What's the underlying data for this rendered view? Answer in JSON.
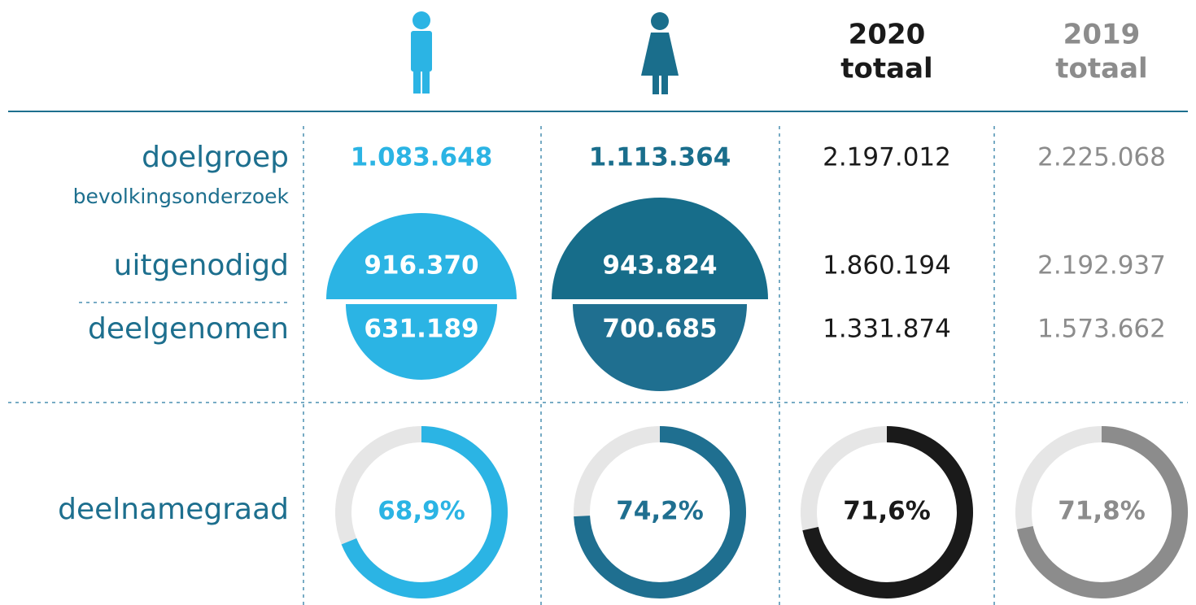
{
  "header": {
    "totals": [
      {
        "year": "2020",
        "label": "totaal"
      },
      {
        "year": "2019",
        "label": "totaal"
      }
    ]
  },
  "table": {
    "rows": [
      {
        "label": "doelgroep",
        "sublabel": "bevolkingsonderzoek",
        "values": [
          "1.083.648",
          "1.113.364",
          "2.197.012",
          "2.225.068"
        ]
      },
      {
        "label": "uitgenodigd",
        "values": [
          "916.370",
          "943.824",
          "1.860.194",
          "2.192.937"
        ]
      },
      {
        "label": "deelgenomen",
        "values": [
          "631.189",
          "700.685",
          "1.331.874",
          "1.573.662"
        ]
      }
    ]
  },
  "rates": {
    "label": "deelnamegraad",
    "values": [
      {
        "value": 68.9,
        "label": "68,9%"
      },
      {
        "value": 74.2,
        "label": "74,2%"
      },
      {
        "value": 71.6,
        "label": "71,6%"
      },
      {
        "value": 71.8,
        "label": "71,8%"
      }
    ],
    "colors": [
      "#2bb4e4",
      "#1f6f90",
      "#1a1a1a",
      "#8c8c8c"
    ],
    "track_color": "#e6e6e6"
  }
}
